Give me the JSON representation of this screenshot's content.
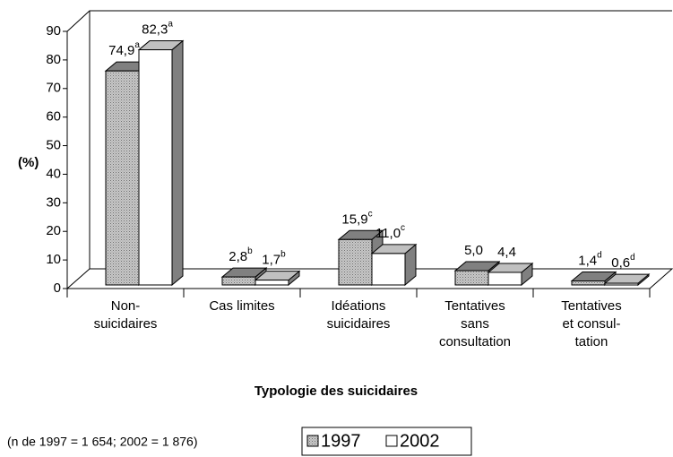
{
  "chart_data": {
    "type": "bar3d",
    "y_label": "(%)",
    "x_label": "Typologie des suicidaires",
    "note": "(n de 1997 = 1 654; 2002 = 1 876)",
    "categories": [
      [
        "Non-",
        "suicidaires"
      ],
      [
        "Cas limites"
      ],
      [
        "Idéations",
        "suicidaires"
      ],
      [
        "Tentatives",
        "sans",
        "consultation"
      ],
      [
        "Tentatives",
        "et consul-",
        "tation"
      ]
    ],
    "ylim": [
      0,
      90
    ],
    "yticks": [
      0,
      10,
      20,
      30,
      40,
      50,
      60,
      70,
      80,
      90
    ],
    "series": [
      {
        "name": "1997",
        "color": "#c0c0c0",
        "values": [
          74.9,
          2.8,
          15.9,
          5.0,
          1.4
        ],
        "value_labels": [
          "74,9",
          "2,8",
          "15,9",
          "5,0",
          "1,4"
        ],
        "value_notes": [
          "a",
          "b",
          "c",
          null,
          "d"
        ]
      },
      {
        "name": "2002",
        "color": "#ffffff",
        "values": [
          82.3,
          1.7,
          11.0,
          4.4,
          0.6
        ],
        "value_labels": [
          "82,3",
          "1,7",
          "11,0",
          "4,4",
          "0,6"
        ],
        "value_notes": [
          "a",
          "b",
          "c",
          null,
          "d"
        ]
      }
    ]
  }
}
